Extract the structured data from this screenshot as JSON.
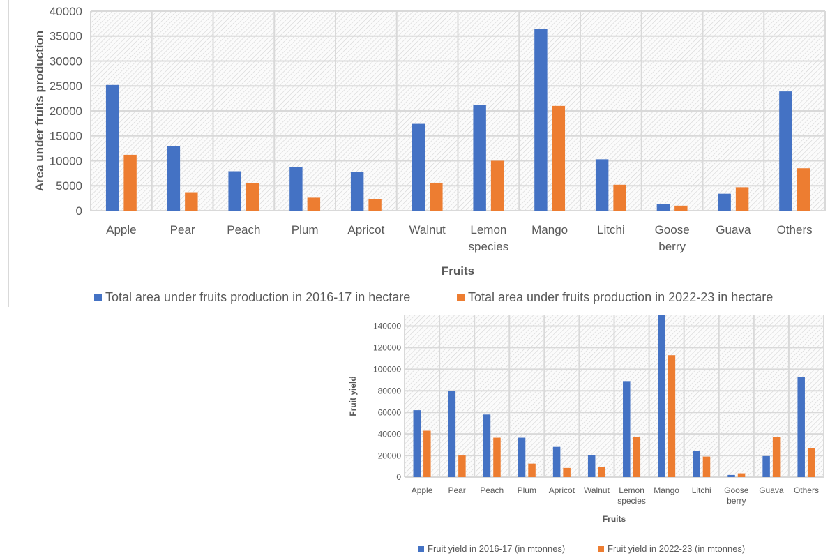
{
  "chart_data": [
    {
      "type": "bar",
      "title": "",
      "xlabel": "Fruits",
      "ylabel": "Area under fruits production",
      "ylim": [
        0,
        40000
      ],
      "yticks": [
        0,
        5000,
        10000,
        15000,
        20000,
        25000,
        30000,
        35000,
        40000
      ],
      "grid": true,
      "legend_position": "bottom",
      "categories": [
        "Apple",
        "Pear",
        "Peach",
        "Plum",
        "Apricot",
        "Walnut",
        "Lemon species",
        "Mango",
        "Litchi",
        "Goose berry",
        "Guava",
        "Others"
      ],
      "series": [
        {
          "name": "Total area under fruits production in 2016-17 in hectare",
          "color": "#4472c4",
          "values": [
            25200,
            13000,
            7900,
            8800,
            7800,
            17400,
            21200,
            36400,
            10300,
            1300,
            3400,
            23900
          ]
        },
        {
          "name": "Total area under fruits production in 2022-23 in hectare",
          "color": "#ed7d31",
          "values": [
            11200,
            3700,
            5500,
            2600,
            2300,
            5600,
            10000,
            21000,
            5200,
            1000,
            4700,
            8500
          ]
        }
      ]
    },
    {
      "type": "bar",
      "title": "",
      "xlabel": "Fruits",
      "ylabel": "Fruit yield",
      "ylim": [
        0,
        150000
      ],
      "yticks": [
        0,
        20000,
        40000,
        60000,
        80000,
        100000,
        120000,
        140000
      ],
      "grid": true,
      "legend_position": "bottom",
      "categories": [
        "Apple",
        "Pear",
        "Peach",
        "Plum",
        "Apricot",
        "Walnut",
        "Lemon species",
        "Mango",
        "Litchi",
        "Goose berry",
        "Guava",
        "Others"
      ],
      "series": [
        {
          "name": "Fruit yield in 2016-17 (in mtonnes)",
          "color": "#4472c4",
          "values": [
            62000,
            80000,
            58000,
            36500,
            28000,
            20500,
            89000,
            150000,
            24000,
            2000,
            19500,
            93000
          ]
        },
        {
          "name": "Fruit yield in 2022-23 (in mtonnes)",
          "color": "#ed7d31",
          "values": [
            43000,
            20000,
            36500,
            12500,
            8500,
            9500,
            37000,
            113000,
            19000,
            3500,
            37500,
            27000
          ]
        }
      ]
    }
  ]
}
